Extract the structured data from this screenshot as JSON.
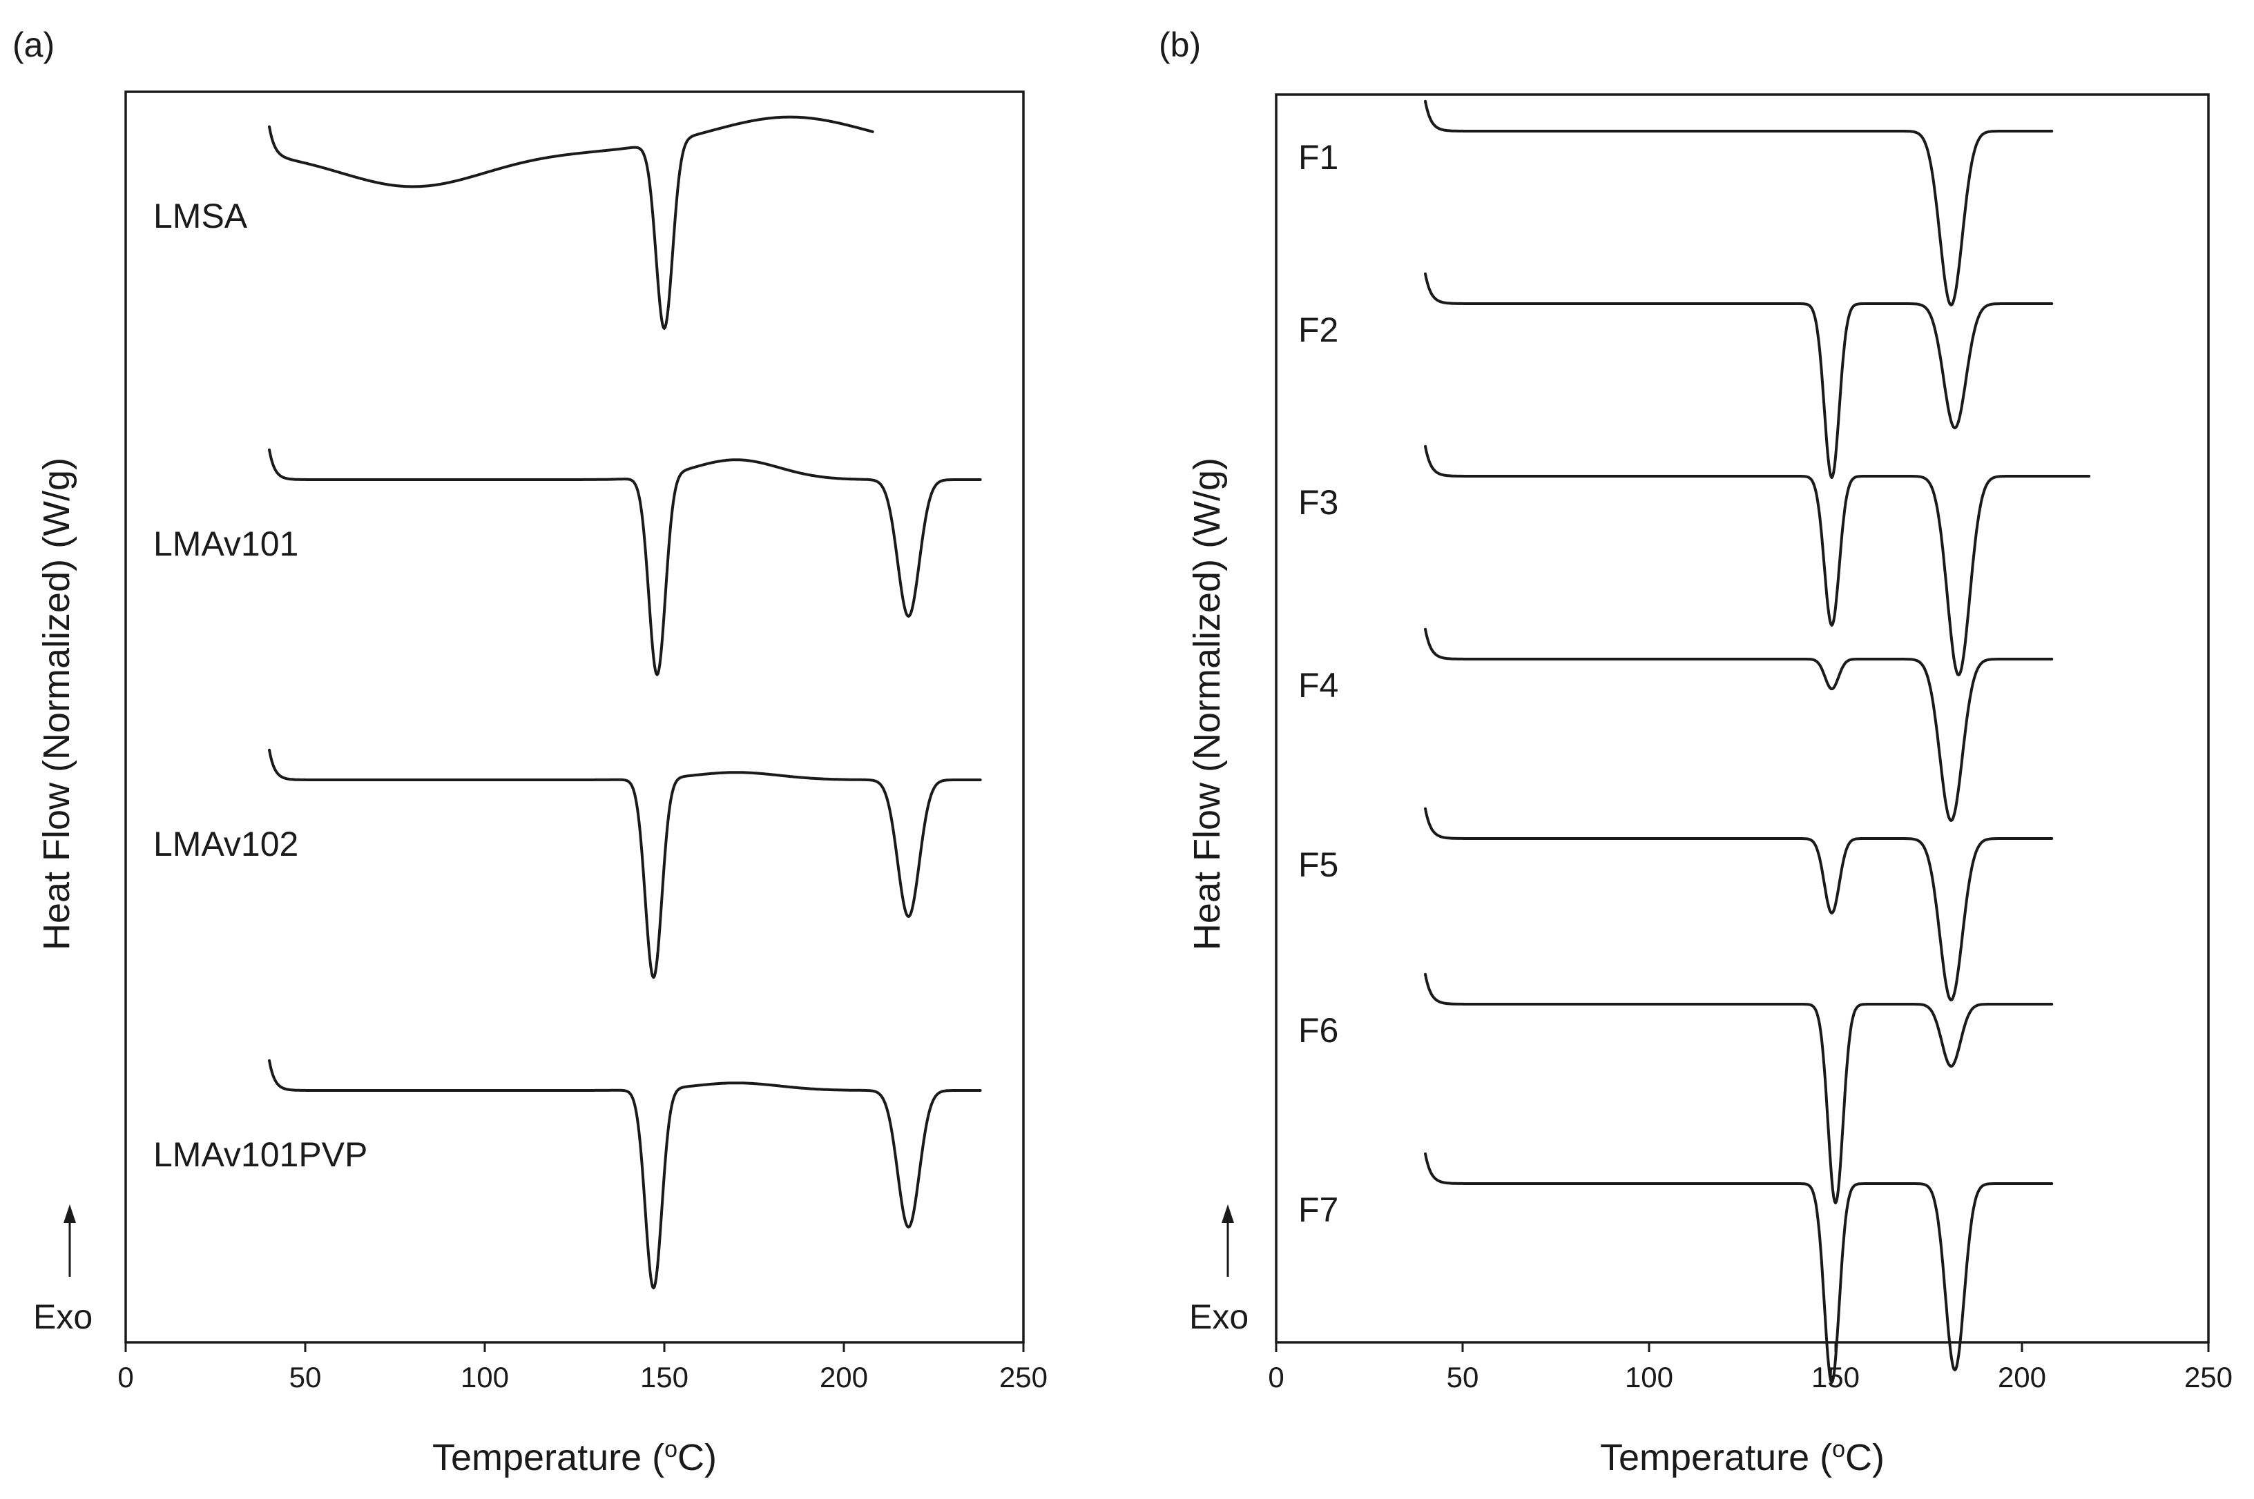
{
  "chart_data": [
    {
      "type": "line",
      "panel": "(a)",
      "xlabel": "Temperature (°C)",
      "ylabel": "Heat Flow (Normalized) (W/g)",
      "exo_label": "Exo",
      "xlim": [
        0,
        250
      ],
      "xticks": [
        0,
        50,
        100,
        150,
        200,
        250
      ],
      "grid": false,
      "series": [
        {
          "name": "LMSA",
          "offset": 0.9,
          "scale": 0.18,
          "x_end": 208,
          "features": [
            {
              "kind": "dip",
              "center": 150,
              "depth": 0.75,
              "width": 2.3
            },
            {
              "kind": "hump",
              "center": 80,
              "height": -0.14,
              "width": 20
            },
            {
              "kind": "hump",
              "center": 185,
              "height": 0.14,
              "width": 22
            }
          ]
        },
        {
          "name": "LMAv101",
          "offset": 0.8,
          "scale": 0.18,
          "x_end": 238,
          "features": [
            {
              "kind": "dip",
              "center": 148,
              "depth": 0.8,
              "width": 2.3
            },
            {
              "kind": "dip",
              "center": 218,
              "depth": 0.55,
              "width": 3.0
            },
            {
              "kind": "hump",
              "center": 170,
              "height": 0.08,
              "width": 12
            }
          ]
        },
        {
          "name": "LMAv102",
          "offset": 0.8,
          "scale": 0.18,
          "x_end": 238,
          "features": [
            {
              "kind": "dip",
              "center": 147,
              "depth": 0.8,
              "width": 2.3
            },
            {
              "kind": "dip",
              "center": 218,
              "depth": 0.55,
              "width": 3.0
            },
            {
              "kind": "hump",
              "center": 170,
              "height": 0.03,
              "width": 12
            }
          ]
        },
        {
          "name": "LMAv101PVP",
          "offset": 0.8,
          "scale": 0.18,
          "x_end": 238,
          "features": [
            {
              "kind": "dip",
              "center": 147,
              "depth": 0.8,
              "width": 2.3
            },
            {
              "kind": "dip",
              "center": 218,
              "depth": 0.55,
              "width": 3.0
            },
            {
              "kind": "hump",
              "center": 170,
              "height": 0.03,
              "width": 12
            }
          ]
        }
      ]
    },
    {
      "type": "line",
      "panel": "(b)",
      "xlabel": "Temperature (°C)",
      "ylabel": "Heat Flow (Normalized) (W/g)",
      "exo_label": "Exo",
      "xlim": [
        0,
        250
      ],
      "xticks": [
        0,
        50,
        100,
        150,
        200,
        250
      ],
      "grid": false,
      "series": [
        {
          "name": "F1",
          "offset": 0.75,
          "scale": 0.15,
          "x_end": 208,
          "features": [
            {
              "kind": "dip",
              "center": 181,
              "depth": 0.7,
              "width": 3.0
            }
          ]
        },
        {
          "name": "F2",
          "offset": 0.75,
          "scale": 0.15,
          "x_end": 208,
          "features": [
            {
              "kind": "dip",
              "center": 149,
              "depth": 0.7,
              "width": 2.0
            },
            {
              "kind": "dip",
              "center": 182,
              "depth": 0.5,
              "width": 3.0
            }
          ]
        },
        {
          "name": "F3",
          "offset": 0.75,
          "scale": 0.15,
          "x_end": 218,
          "features": [
            {
              "kind": "dip",
              "center": 149,
              "depth": 0.6,
              "width": 2.0
            },
            {
              "kind": "dip",
              "center": 183,
              "depth": 0.8,
              "width": 3.0
            }
          ]
        },
        {
          "name": "F4",
          "offset": 0.75,
          "scale": 0.15,
          "x_end": 208,
          "features": [
            {
              "kind": "dip",
              "center": 149,
              "depth": 0.12,
              "width": 1.8
            },
            {
              "kind": "dip",
              "center": 181,
              "depth": 0.65,
              "width": 3.0
            }
          ]
        },
        {
          "name": "F5",
          "offset": 0.75,
          "scale": 0.15,
          "x_end": 208,
          "features": [
            {
              "kind": "dip",
              "center": 149,
              "depth": 0.3,
              "width": 2.0
            },
            {
              "kind": "dip",
              "center": 181,
              "depth": 0.65,
              "width": 3.0
            }
          ]
        },
        {
          "name": "F6",
          "offset": 0.75,
          "scale": 0.15,
          "x_end": 208,
          "features": [
            {
              "kind": "dip",
              "center": 150,
              "depth": 0.8,
              "width": 2.0
            },
            {
              "kind": "dip",
              "center": 181,
              "depth": 0.25,
              "width": 2.5
            }
          ]
        },
        {
          "name": "F7",
          "offset": 0.75,
          "scale": 0.15,
          "x_end": 208,
          "features": [
            {
              "kind": "dip",
              "center": 149,
              "depth": 0.8,
              "width": 2.0
            },
            {
              "kind": "dip",
              "center": 182,
              "depth": 0.75,
              "width": 2.5
            }
          ]
        }
      ]
    }
  ]
}
